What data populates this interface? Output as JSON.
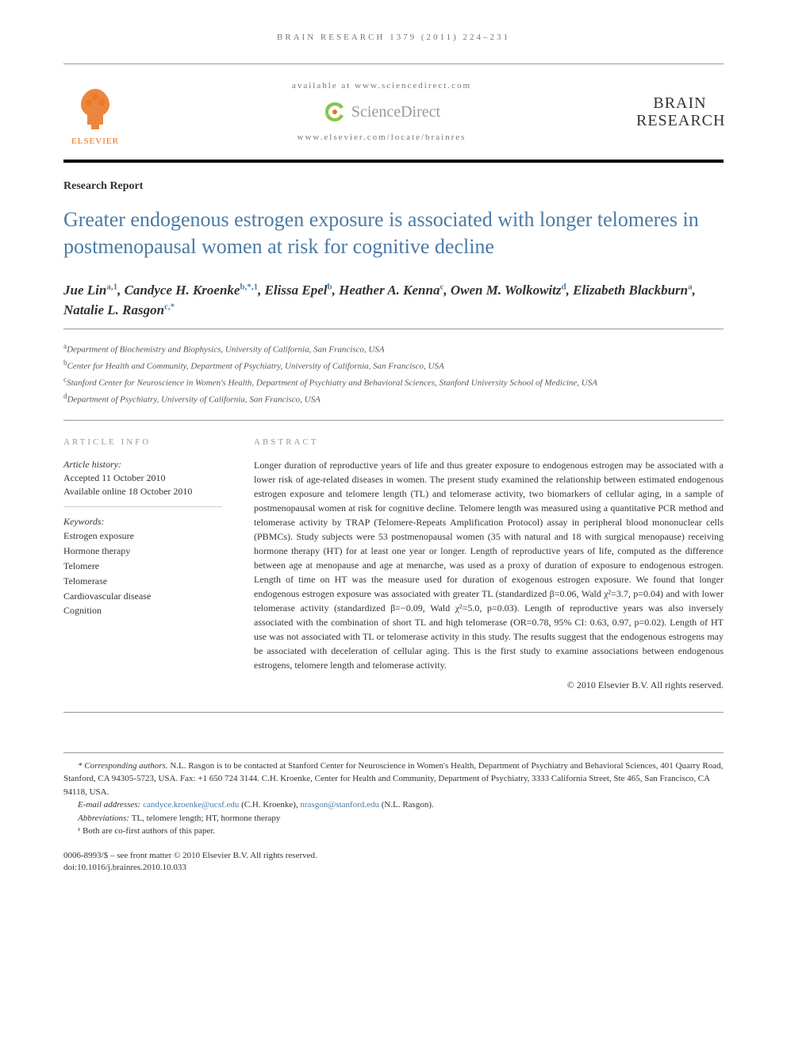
{
  "journal_ref": "BRAIN RESEARCH 1379 (2011) 224–231",
  "header": {
    "available_at": "available at www.sciencedirect.com",
    "sd_brand": "ScienceDirect",
    "journal_link": "www.elsevier.com/locate/brainres",
    "elsevier_label": "ELSEVIER",
    "journal_logo_line1": "BRAIN",
    "journal_logo_line2": "RESEARCH"
  },
  "article_type": "Research Report",
  "title": "Greater endogenous estrogen exposure is associated with longer telomeres in postmenopausal women at risk for cognitive decline",
  "authors_html": "Jue Lin<sup>a,1</sup>, Candyce H. Kroenke<sup>b,*,1</sup>, Elissa Epel<sup>b</sup>, Heather A. Kenna<sup>c</sup>, Owen M. Wolkowitz<sup>d</sup>, Elizabeth Blackburn<sup>a</sup>, Natalie L. Rasgon<sup>c,*</sup>",
  "affiliations": [
    {
      "sup": "a",
      "text": "Department of Biochemistry and Biophysics, University of California, San Francisco, USA"
    },
    {
      "sup": "b",
      "text": "Center for Health and Community, Department of Psychiatry, University of California, San Francisco, USA"
    },
    {
      "sup": "c",
      "text": "Stanford Center for Neuroscience in Women's Health, Department of Psychiatry and Behavioral Sciences, Stanford University School of Medicine, USA"
    },
    {
      "sup": "d",
      "text": "Department of Psychiatry, University of California, San Francisco, USA"
    }
  ],
  "article_info": {
    "heading": "ARTICLE INFO",
    "history_label": "Article history:",
    "accepted": "Accepted 11 October 2010",
    "online": "Available online 18 October 2010",
    "keywords_label": "Keywords:",
    "keywords": [
      "Estrogen exposure",
      "Hormone therapy",
      "Telomere",
      "Telomerase",
      "Cardiovascular disease",
      "Cognition"
    ]
  },
  "abstract": {
    "heading": "ABSTRACT",
    "text": "Longer duration of reproductive years of life and thus greater exposure to endogenous estrogen may be associated with a lower risk of age-related diseases in women. The present study examined the relationship between estimated endogenous estrogen exposure and telomere length (TL) and telomerase activity, two biomarkers of cellular aging, in a sample of postmenopausal women at risk for cognitive decline. Telomere length was measured using a quantitative PCR method and telomerase activity by TRAP (Telomere-Repeats Amplification Protocol) assay in peripheral blood mononuclear cells (PBMCs). Study subjects were 53 postmenopausal women (35 with natural and 18 with surgical menopause) receiving hormone therapy (HT) for at least one year or longer. Length of reproductive years of life, computed as the difference between age at menopause and age at menarche, was used as a proxy of duration of exposure to endogenous estrogen. Length of time on HT was the measure used for duration of exogenous estrogen exposure. We found that longer endogenous estrogen exposure was associated with greater TL (standardized β=0.06, Wald χ²=3.7, p=0.04) and with lower telomerase activity (standardized β=−0.09, Wald χ²=5.0, p=0.03). Length of reproductive years was also inversely associated with the combination of short TL and high telomerase (OR=0.78, 95% CI: 0.63, 0.97, p=0.02). Length of HT use was not associated with TL or telomerase activity in this study. The results suggest that the endogenous estrogens may be associated with deceleration of cellular aging. This is the first study to examine associations between endogenous estrogens, telomere length and telomerase activity.",
    "copyright": "© 2010 Elsevier B.V. All rights reserved."
  },
  "footnotes": {
    "corresponding_label": "* Corresponding authors.",
    "corresponding_text": " N.L. Rasgon is to be contacted at Stanford Center for Neuroscience in Women's Health, Department of Psychiatry and Behavioral Sciences, 401 Quarry Road, Stanford, CA 94305-5723, USA. Fax: +1 650 724 3144. C.H. Kroenke, Center for Health and Community, Department of Psychiatry, 3333 California Street, Ste 465, San Francisco, CA 94118, USA.",
    "email_label": "E-mail addresses: ",
    "email1": "candyce.kroenke@ucsf.edu",
    "email1_who": " (C.H. Kroenke), ",
    "email2": "nrasgon@stanford.edu",
    "email2_who": " (N.L. Rasgon).",
    "abbrev_label": "Abbreviations: ",
    "abbrev_text": "TL, telomere length; HT, hormone therapy",
    "note1": "¹ Both are co-first authors of this paper."
  },
  "doi": {
    "line1": "0006-8993/$ – see front matter © 2010 Elsevier B.V. All rights reserved.",
    "line2": "doi:10.1016/j.brainres.2010.10.033"
  },
  "colors": {
    "title_color": "#4a7ba6",
    "elsevier_orange": "#e9711c",
    "sd_green": "#8bc34a",
    "text": "#333333",
    "muted": "#777777"
  }
}
